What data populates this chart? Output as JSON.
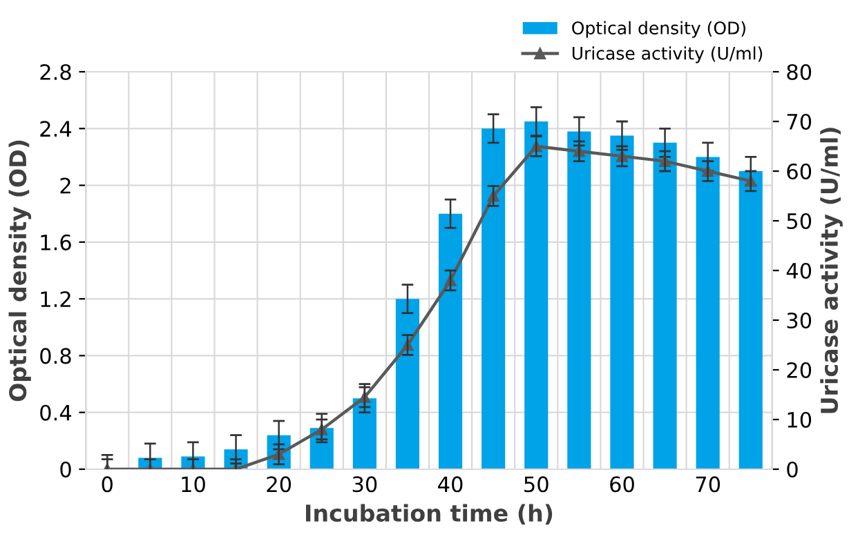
{
  "chart_data": {
    "type": "bar",
    "xlabel": "Incubation time (h)",
    "ylabel": "Optical density (OD)",
    "y2label": "Uricase activity (U/ml)",
    "categories": [
      "0",
      null,
      "10",
      null,
      "20",
      null,
      "30",
      null,
      "40",
      null,
      "50",
      null,
      "60",
      null,
      "70",
      null
    ],
    "series": [
      {
        "name": "Optical density (OD)",
        "color": "#00a2e8",
        "values": [
          0,
          0.08,
          0.09,
          0.14,
          0.24,
          0.29,
          0.5,
          1.2,
          1.8,
          2.4,
          2.45,
          2.38,
          2.35,
          2.3,
          2.2,
          2.1
        ],
        "errors": [
          0.1,
          0.1,
          0.1,
          0.1,
          0.1,
          0.1,
          0.1,
          0.1,
          0.1,
          0.1,
          0.1,
          0.1,
          0.1,
          0.1,
          0.1,
          0.1
        ]
      },
      {
        "name": "Uricase activity (U/ml)",
        "type": "line",
        "axis": "y2",
        "color": "#595959",
        "marker": "triangle",
        "values": [
          0,
          0,
          0,
          0,
          3,
          8,
          14.5,
          25,
          38,
          55,
          65,
          64,
          63,
          62,
          60,
          58
        ],
        "errors": [
          2,
          2,
          2,
          2,
          2,
          2,
          2,
          2,
          2,
          2,
          2,
          2,
          2,
          2,
          2,
          2
        ]
      }
    ],
    "ylim": [
      0,
      2.8
    ],
    "yticks": [
      0,
      0.4,
      0.8,
      1.2,
      1.6,
      2,
      2.4,
      2.8
    ],
    "y2lim": [
      0,
      80
    ],
    "y2ticks": [
      0,
      10,
      20,
      30,
      40,
      50,
      60,
      70,
      80
    ],
    "grid": true,
    "legend": "top right"
  }
}
